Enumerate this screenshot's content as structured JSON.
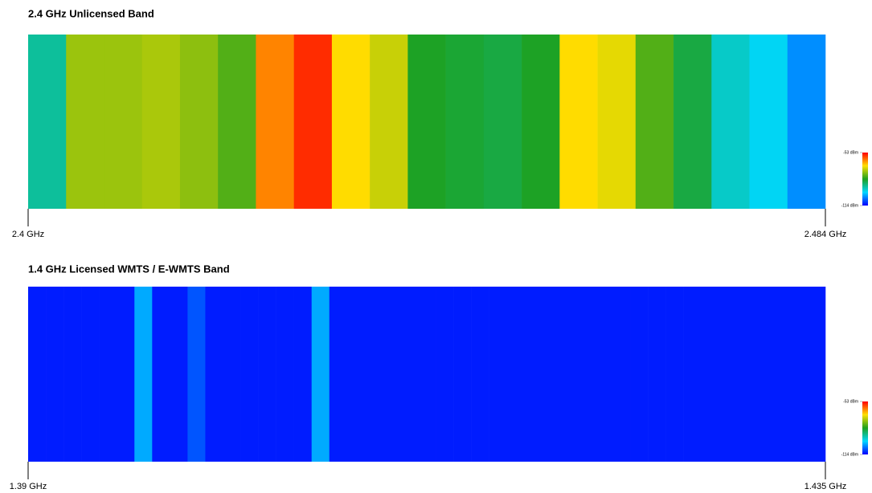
{
  "chart_data": [
    {
      "type": "heatmap",
      "title": "2.4 GHz Unlicensed Band",
      "x": [
        2.402,
        2.406,
        2.41,
        2.414,
        2.418,
        2.422,
        2.426,
        2.43,
        2.434,
        2.438,
        2.442,
        2.446,
        2.45,
        2.454,
        2.458,
        2.462,
        2.466,
        2.47,
        2.474,
        2.478,
        2.482
      ],
      "values": [
        -92,
        -75,
        -75,
        -74,
        -76,
        -80,
        -62,
        -56,
        -68,
        -72,
        -84,
        -85,
        -86,
        -84,
        -68,
        -70,
        -80,
        -86,
        -95,
        -98,
        -104
      ],
      "xlim": [
        2.4,
        2.484
      ],
      "xticks": [
        {
          "value": 2.4,
          "label": "2.4 GHz"
        },
        {
          "value": 2.484,
          "label": "2.484 GHz"
        }
      ],
      "clim": [
        -114,
        -53
      ],
      "cticks": [
        {
          "value": -53,
          "label": "-53 dBm"
        },
        {
          "value": -114,
          "label": "-114 dBm"
        }
      ],
      "colormap": [
        "#0000ff",
        "#00d8ff",
        "#1ea01e",
        "#ffe000",
        "#ff0000"
      ]
    },
    {
      "type": "heatmap",
      "title": "1.4 GHz Licensed WMTS / E-WMTS Band",
      "x": [
        1.3905,
        1.3915,
        1.3925,
        1.3935,
        1.3945,
        1.3955,
        1.3965,
        1.3975,
        1.3985,
        1.3995,
        1.4005,
        1.4015,
        1.4025,
        1.4035,
        1.4045,
        1.4055,
        1.4065,
        1.4075,
        1.4085,
        1.4095,
        1.4105,
        1.4115,
        1.4125,
        1.4135,
        1.4145,
        1.4155,
        1.4165,
        1.4175,
        1.4185,
        1.4195,
        1.4205,
        1.4215,
        1.4225,
        1.4235,
        1.4245,
        1.4255,
        1.4265,
        1.4275,
        1.4285,
        1.4295,
        1.4305,
        1.4315,
        1.4325,
        1.4335,
        1.4345
      ],
      "values": [
        -112,
        -112,
        -112,
        -112,
        -112,
        -112,
        -102,
        -112,
        -112,
        -108,
        -112,
        -112,
        -112,
        -112,
        -112,
        -112,
        -102,
        -112,
        -112,
        -112,
        -112,
        -112,
        -112,
        -112,
        -112,
        -112,
        -112,
        -112,
        -112,
        -112,
        -112,
        -112,
        -112,
        -112,
        -112,
        -112,
        -112,
        -112,
        -112,
        -112,
        -112,
        -112,
        -112,
        -112,
        -112
      ],
      "xlim": [
        1.39,
        1.435
      ],
      "xticks": [
        {
          "value": 1.39,
          "label": "1.39 GHz"
        },
        {
          "value": 1.435,
          "label": "1.435 GHz"
        }
      ],
      "clim": [
        -114,
        -53
      ],
      "cticks": [
        {
          "value": -53,
          "label": "-53 dBm"
        },
        {
          "value": -114,
          "label": "-114 dBm"
        }
      ],
      "colormap": [
        "#0000ff",
        "#00d8ff",
        "#1ea01e",
        "#ffe000",
        "#ff0000"
      ]
    }
  ]
}
